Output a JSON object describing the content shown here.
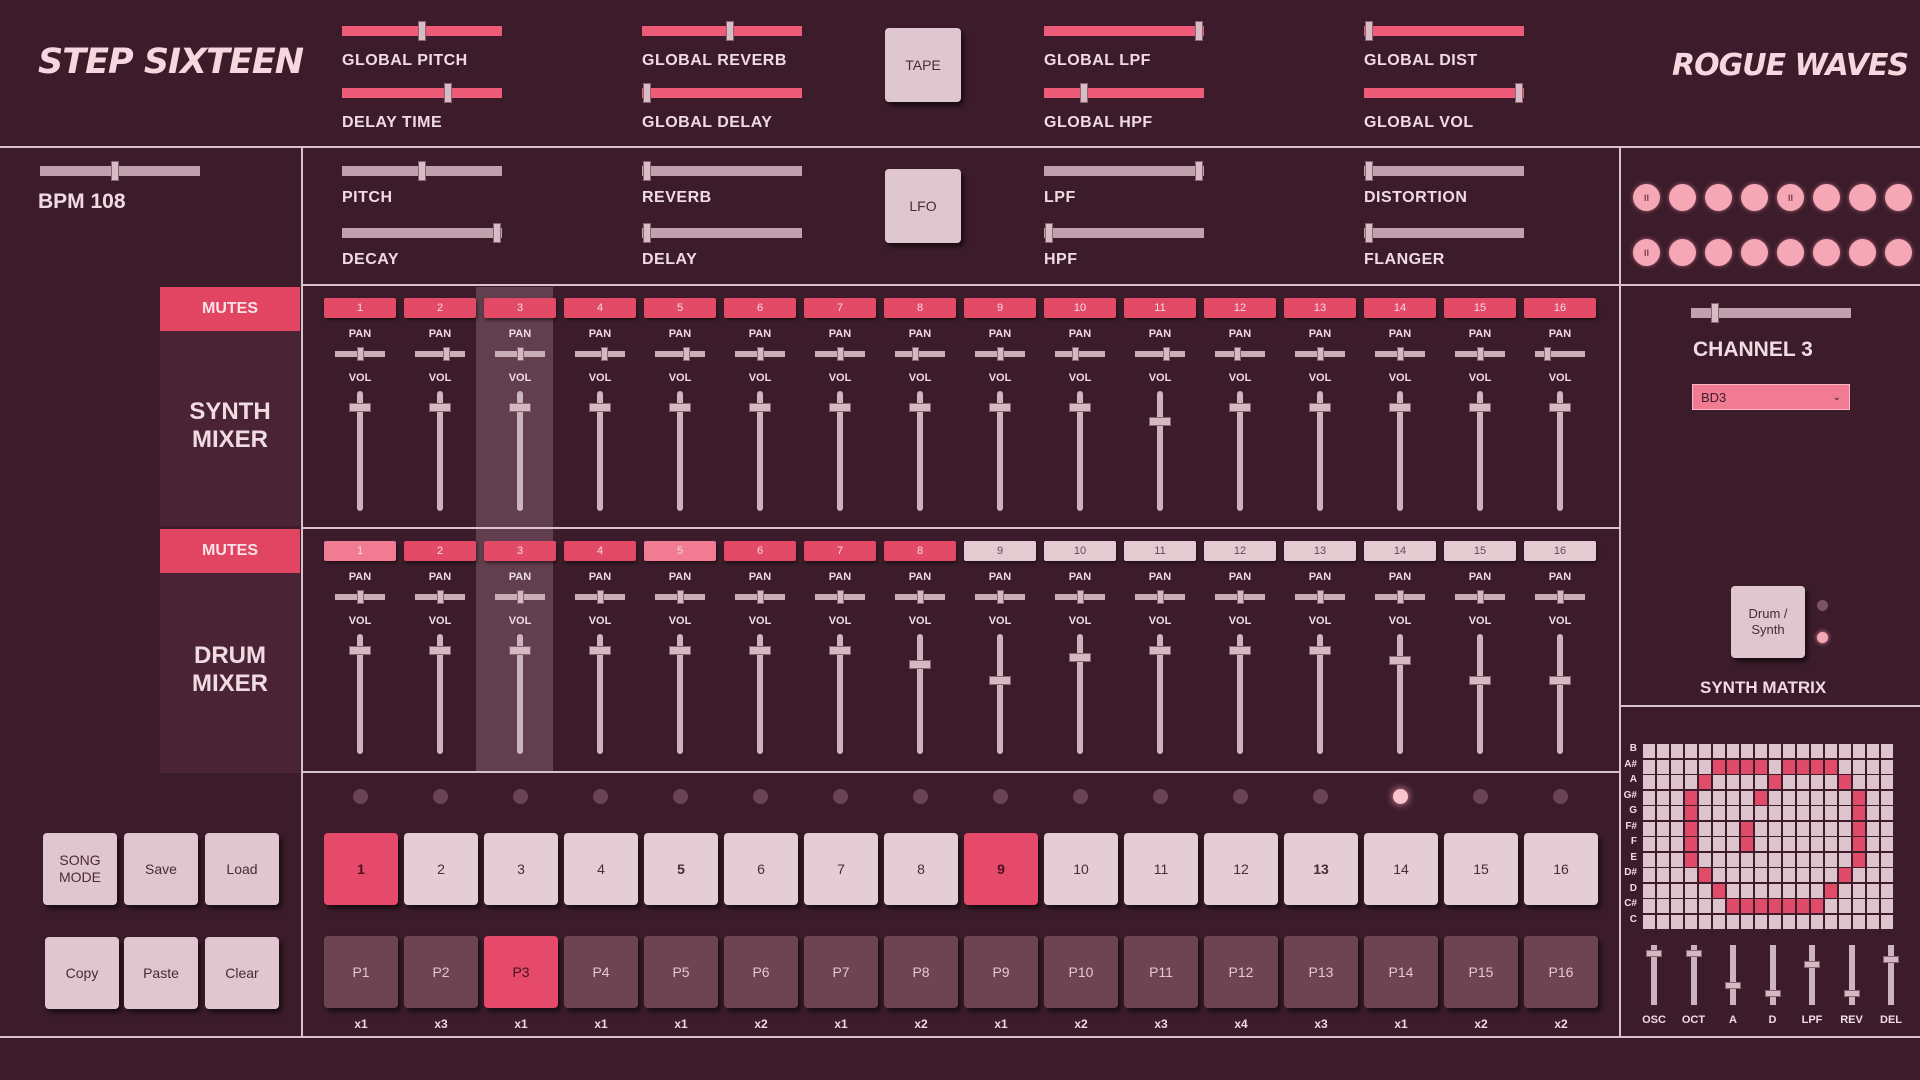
{
  "header": {
    "app_title": "STEP SIXTEEN",
    "brand": "ROGUE WAVES"
  },
  "global_controls": [
    {
      "label": "GLOBAL PITCH",
      "value": 0.5,
      "active": true
    },
    {
      "label": "DELAY TIME",
      "value": 0.66,
      "active": true
    },
    {
      "label": "GLOBAL REVERB",
      "value": 0.55,
      "active": true
    },
    {
      "label": "GLOBAL DELAY",
      "value": 0.03,
      "active": true
    },
    {
      "label": "GLOBAL LPF",
      "value": 0.97,
      "active": true
    },
    {
      "label": "GLOBAL HPF",
      "value": 0.25,
      "active": true
    },
    {
      "label": "GLOBAL DIST",
      "value": 0.03,
      "active": true
    },
    {
      "label": "GLOBAL VOL",
      "value": 0.97,
      "active": true
    }
  ],
  "tape_button": "TAPE",
  "lfo_button": "LFO",
  "bpm": {
    "label": "BPM 108",
    "value": 0.47
  },
  "channel_controls": [
    {
      "label": "PITCH",
      "value": 0.5
    },
    {
      "label": "DECAY",
      "value": 0.97
    },
    {
      "label": "REVERB",
      "value": 0.03
    },
    {
      "label": "DELAY",
      "value": 0.03
    },
    {
      "label": "LPF",
      "value": 0.97
    },
    {
      "label": "HPF",
      "value": 0.03
    },
    {
      "label": "DISTORTION",
      "value": 0.03
    },
    {
      "label": "FLANGER",
      "value": 0.03
    }
  ],
  "lfo_indicators": {
    "row1": [
      "II",
      "",
      "",
      "",
      "II",
      "",
      "",
      ""
    ],
    "row2": [
      "II",
      "",
      "",
      "",
      "",
      "",
      "",
      ""
    ]
  },
  "channel_panel": {
    "title": "CHANNEL 3",
    "sample": "BD3",
    "slider_value": 0.15
  },
  "mixers": {
    "synth": {
      "mutes_label": "MUTES",
      "title_line1": "SYNTH",
      "title_line2": "MIXER",
      "channels": [
        "1",
        "2",
        "3",
        "4",
        "5",
        "6",
        "7",
        "8",
        "9",
        "10",
        "11",
        "12",
        "13",
        "14",
        "15",
        "16"
      ],
      "mute_state": [
        "act",
        "act",
        "act",
        "act",
        "act",
        "act",
        "act",
        "act",
        "act",
        "act",
        "act",
        "act",
        "act",
        "act",
        "act",
        "act"
      ],
      "pan_label": "PAN",
      "vol_label": "VOL",
      "pan": [
        0.5,
        0.65,
        0.5,
        0.6,
        0.65,
        0.5,
        0.5,
        0.4,
        0.5,
        0.4,
        0.65,
        0.45,
        0.5,
        0.5,
        0.5,
        0.2
      ],
      "vol": [
        0.9,
        0.9,
        0.9,
        0.9,
        0.9,
        0.9,
        0.9,
        0.9,
        0.9,
        0.9,
        0.78,
        0.9,
        0.9,
        0.9,
        0.9,
        0.9
      ]
    },
    "drum": {
      "mutes_label": "MUTES",
      "title_line1": "DRUM",
      "title_line2": "MIXER",
      "channels": [
        "1",
        "2",
        "3",
        "4",
        "5",
        "6",
        "7",
        "8",
        "9",
        "10",
        "11",
        "12",
        "13",
        "14",
        "15",
        "16"
      ],
      "mute_state": [
        "hi",
        "act",
        "act",
        "act",
        "hi",
        "act",
        "act",
        "act",
        "idle",
        "idle",
        "idle",
        "idle",
        "idle",
        "idle",
        "idle",
        "idle"
      ],
      "pan_label": "PAN",
      "vol_label": "VOL",
      "pan": [
        0.5,
        0.5,
        0.5,
        0.5,
        0.5,
        0.5,
        0.5,
        0.5,
        0.5,
        0.5,
        0.5,
        0.5,
        0.5,
        0.5,
        0.5,
        0.5
      ],
      "vol": [
        0.9,
        0.9,
        0.9,
        0.9,
        0.9,
        0.9,
        0.9,
        0.78,
        0.65,
        0.84,
        0.9,
        0.9,
        0.9,
        0.82,
        0.65,
        0.65
      ]
    }
  },
  "selected_channel_index": 2,
  "playhead_index": 13,
  "step_buttons": [
    {
      "label": "1",
      "state": "on"
    },
    {
      "label": "2",
      "state": ""
    },
    {
      "label": "3",
      "state": ""
    },
    {
      "label": "4",
      "state": ""
    },
    {
      "label": "5",
      "state": "bold"
    },
    {
      "label": "6",
      "state": ""
    },
    {
      "label": "7",
      "state": ""
    },
    {
      "label": "8",
      "state": ""
    },
    {
      "label": "9",
      "state": "on"
    },
    {
      "label": "10",
      "state": ""
    },
    {
      "label": "11",
      "state": ""
    },
    {
      "label": "12",
      "state": ""
    },
    {
      "label": "13",
      "state": "bold"
    },
    {
      "label": "14",
      "state": ""
    },
    {
      "label": "15",
      "state": ""
    },
    {
      "label": "16",
      "state": ""
    }
  ],
  "patterns": [
    {
      "label": "P1",
      "reps": "x1"
    },
    {
      "label": "P2",
      "reps": "x3"
    },
    {
      "label": "P3",
      "reps": "x1",
      "active": true
    },
    {
      "label": "P4",
      "reps": "x1"
    },
    {
      "label": "P5",
      "reps": "x1"
    },
    {
      "label": "P6",
      "reps": "x2"
    },
    {
      "label": "P7",
      "reps": "x1"
    },
    {
      "label": "P8",
      "reps": "x2"
    },
    {
      "label": "P9",
      "reps": "x1"
    },
    {
      "label": "P10",
      "reps": "x2"
    },
    {
      "label": "P11",
      "reps": "x3"
    },
    {
      "label": "P12",
      "reps": "x4"
    },
    {
      "label": "P13",
      "reps": "x3"
    },
    {
      "label": "P14",
      "reps": "x1"
    },
    {
      "label": "P15",
      "reps": "x2"
    },
    {
      "label": "P16",
      "reps": "x2"
    }
  ],
  "transport": {
    "song_mode": "SONG MODE",
    "save": "Save",
    "load": "Load",
    "copy": "Copy",
    "paste": "Paste",
    "clear": "Clear"
  },
  "drum_synth_toggle": "Drum / Synth",
  "synth_matrix": {
    "title": "SYNTH MATRIX",
    "notes": [
      "B",
      "A#",
      "A",
      "G#",
      "G",
      "F#",
      "F",
      "E",
      "D#",
      "D",
      "C#",
      "C"
    ],
    "on_cells": [
      [
        1,
        5
      ],
      [
        1,
        6
      ],
      [
        1,
        7
      ],
      [
        1,
        8
      ],
      [
        1,
        10
      ],
      [
        1,
        11
      ],
      [
        1,
        12
      ],
      [
        1,
        13
      ],
      [
        2,
        4
      ],
      [
        2,
        9
      ],
      [
        2,
        14
      ],
      [
        3,
        3
      ],
      [
        3,
        8
      ],
      [
        3,
        15
      ],
      [
        4,
        3
      ],
      [
        4,
        15
      ],
      [
        5,
        3
      ],
      [
        5,
        7
      ],
      [
        5,
        15
      ],
      [
        6,
        3
      ],
      [
        6,
        7
      ],
      [
        6,
        15
      ],
      [
        7,
        3
      ],
      [
        7,
        15
      ],
      [
        8,
        4
      ],
      [
        8,
        14
      ],
      [
        9,
        5
      ],
      [
        9,
        13
      ],
      [
        10,
        6
      ],
      [
        10,
        7
      ],
      [
        10,
        8
      ],
      [
        10,
        9
      ],
      [
        10,
        10
      ],
      [
        10,
        11
      ],
      [
        10,
        12
      ]
    ],
    "params": [
      {
        "label": "OSC",
        "value": 0.1
      },
      {
        "label": "OCT",
        "value": 0.1
      },
      {
        "label": "A",
        "value": 0.7
      },
      {
        "label": "D",
        "value": 0.85
      },
      {
        "label": "LPF",
        "value": 0.3
      },
      {
        "label": "REV",
        "value": 0.85
      },
      {
        "label": "DEL",
        "value": 0.2
      }
    ]
  },
  "colors": {
    "accent": "#e54a6a",
    "background": "#3c1c2b",
    "light_button": "#e0c7cf",
    "pattern_button": "#6e4352"
  }
}
